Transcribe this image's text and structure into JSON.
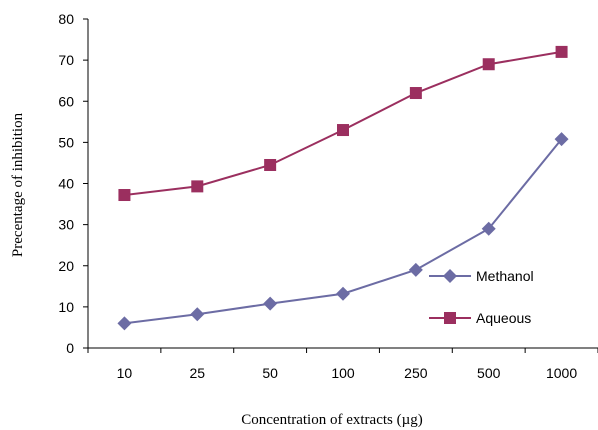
{
  "chart_data": {
    "type": "line",
    "title": "",
    "xlabel": "Concentration of extracts (µg)",
    "ylabel": "Precentage of inhibition",
    "categories": [
      "10",
      "25",
      "50",
      "100",
      "250",
      "500",
      "1000"
    ],
    "ylim": [
      0,
      80
    ],
    "yticks": [
      0,
      10,
      20,
      30,
      40,
      50,
      60,
      70,
      80
    ],
    "grid": false,
    "legend": "right",
    "series": [
      {
        "name": "Methanol",
        "marker": "diamond",
        "color": "#6c6ca4",
        "values": [
          6,
          8.2,
          10.8,
          13.2,
          19,
          29,
          50.8
        ]
      },
      {
        "name": "Aqueous",
        "marker": "square",
        "color": "#9b2f5f",
        "values": [
          37.2,
          39.3,
          44.5,
          53,
          62,
          69,
          72
        ]
      }
    ]
  }
}
